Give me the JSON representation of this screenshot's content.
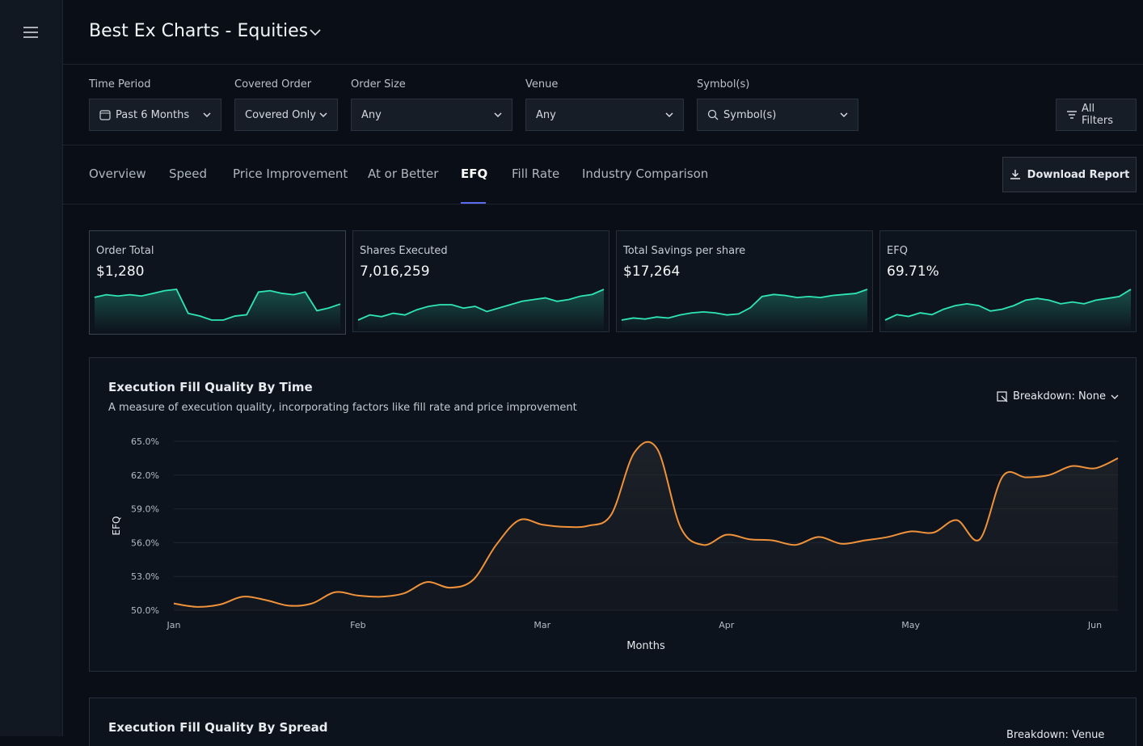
{
  "header": {
    "title": "Best Ex Charts - Equities"
  },
  "filters": [
    {
      "label": "Time Period",
      "value": "Past 6 Months"
    },
    {
      "label": "Covered Order",
      "value": "Covered Only"
    },
    {
      "label": "Order Size",
      "value": "Any"
    },
    {
      "label": "Venue",
      "value": "Any"
    },
    {
      "label": "Symbol(s)",
      "value": "Symbol(s)"
    }
  ],
  "all_filters": "All Filters",
  "tabs": [
    "Overview",
    "Speed",
    "Price Improvement",
    "At or Better",
    "EFQ",
    "Fill Rate",
    "Industry Comparison"
  ],
  "active_tab": 4,
  "download_button": "Download Report",
  "cards": [
    {
      "label": "Order Total",
      "value": "$1,280",
      "values": [
        52,
        54,
        53,
        54,
        53,
        55,
        57,
        58,
        40,
        38,
        35,
        35,
        38,
        39,
        56,
        57,
        55,
        54,
        56,
        42,
        44,
        47
      ]
    },
    {
      "label": "Shares Executed",
      "value": "7,016,259",
      "values": [
        30,
        33,
        32,
        34,
        33,
        36,
        38,
        39,
        39,
        37,
        38,
        35,
        37,
        39,
        41,
        42,
        43,
        41,
        42,
        44,
        45,
        48
      ]
    },
    {
      "label": "Total Savings per share",
      "value": "$17,264",
      "values": [
        30,
        32,
        31,
        33,
        32,
        35,
        37,
        38,
        37,
        35,
        36,
        42,
        53,
        55,
        54,
        52,
        53,
        52,
        54,
        55,
        56,
        60
      ]
    },
    {
      "label": "EFQ",
      "value": "69.71%",
      "values": [
        30,
        33,
        32,
        34,
        33,
        36,
        38,
        39,
        38,
        35,
        36,
        38,
        41,
        42,
        41,
        39,
        40,
        39,
        41,
        42,
        43,
        47
      ]
    }
  ],
  "chart_data": {
    "type": "line",
    "title": "Execution Fill Quality By Time",
    "subtitle": "A measure of execution quality, incorporating factors like fill rate and price improvement",
    "breakdown": "Breakdown: None",
    "ylabel": "EFQ",
    "xlabel": "Months",
    "categories": [
      "Jan",
      null,
      null,
      null,
      null,
      null,
      null,
      null,
      "Feb",
      null,
      null,
      null,
      null,
      null,
      null,
      null,
      "Mar",
      null,
      null,
      null,
      null,
      null,
      null,
      null,
      "Apr",
      null,
      null,
      null,
      null,
      null,
      null,
      null,
      "May",
      null,
      null,
      null,
      null,
      null,
      null,
      null,
      "Jun",
      null
    ],
    "color": "#f0923a",
    "values": [
      50.6,
      50.3,
      50.5,
      51.2,
      50.9,
      50.4,
      50.6,
      51.6,
      51.3,
      51.2,
      51.5,
      52.5,
      52.0,
      52.7,
      55.8,
      58.0,
      57.6,
      57.4,
      57.5,
      58.5,
      64.0,
      64.3,
      57.4,
      55.8,
      56.7,
      56.3,
      56.2,
      55.8,
      56.5,
      55.9,
      56.2,
      56.5,
      57.0,
      56.9,
      58.0,
      56.3,
      61.9,
      61.8,
      62.0,
      62.8,
      62.6,
      63.5
    ],
    "ylim": [
      50,
      65
    ],
    "yticks": [
      {
        "value": 50,
        "label": "50.0%"
      },
      {
        "value": 53,
        "label": "53.0%"
      },
      {
        "value": 56,
        "label": "56.0%"
      },
      {
        "value": 59,
        "label": "59.0%"
      },
      {
        "value": 62,
        "label": "62.0%"
      },
      {
        "value": 65,
        "label": "65.0%"
      }
    ],
    "grid": true
  },
  "second_panel": {
    "title": "Execution Fill Quality By Spread",
    "breakdown": "Breakdown: Venue"
  }
}
